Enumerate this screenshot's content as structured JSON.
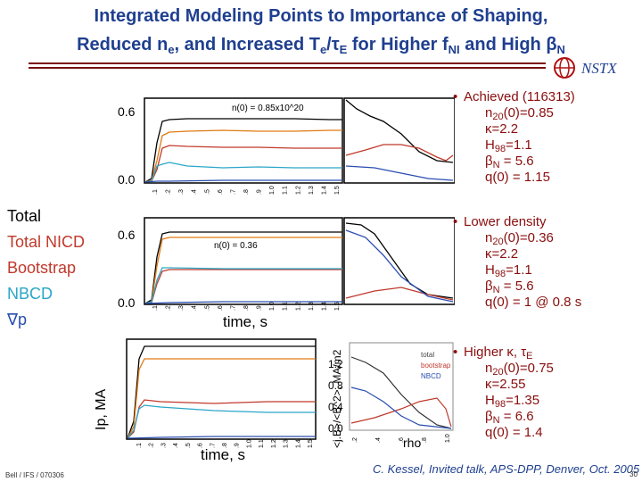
{
  "title": {
    "line1": "Integrated Modeling Points to Importance of Shaping,",
    "line2_a": "Reduced n",
    "line2_sub1": "e",
    "line2_b": ", and Increased T",
    "line2_sub2": "e",
    "line2_c": "/τ",
    "line2_sub3": "E",
    "line2_d": " for Higher f",
    "line2_sub4": "NI",
    "line2_e": " and High β",
    "line2_sub5": "N"
  },
  "logo_text": "NSTX",
  "legend": [
    {
      "label": "Total",
      "color": "#000000"
    },
    {
      "label": "Total NICD",
      "color": "#c0392b"
    },
    {
      "label": "Bootstrap",
      "color": "#c0392b"
    },
    {
      "label": "NBCD",
      "color": "#2aa6c8"
    },
    {
      "label": "∇p",
      "color": "#2a4db0"
    }
  ],
  "panel1": {
    "annot": "n(0) = 0.85x10^20",
    "y_top": "0.6",
    "y_bot": "0.0"
  },
  "panel2": {
    "annot": "n(0) = 0.36",
    "y_top": "0.6",
    "y_bot": "0.0"
  },
  "panel3": {
    "y_ticks": [
      "1.2",
      "0.8",
      "0.4",
      "0.0"
    ]
  },
  "panel3_legend": [
    "total",
    "bootstrap",
    "NBCD"
  ],
  "x_ticks": [
    ".1",
    ".2",
    ".3",
    ".4",
    ".5",
    ".6",
    ".7",
    ".8",
    ".9",
    "1.0",
    "1.1",
    "1.2",
    "1.3",
    "1.4",
    "1.5"
  ],
  "rho_ticks": [
    ".2",
    ".4",
    ".6",
    ".8",
    "1.0"
  ],
  "labels": {
    "time_s": "time, s",
    "ip": "Ip, MA",
    "jb": "<j.B>/<B^2>, MA/m2",
    "rho": "rho"
  },
  "cases": [
    {
      "head": "Achieved (116313)",
      "lines": [
        {
          "pre": "n",
          "sub": "20",
          "post": "(0)=0.85"
        },
        {
          "pre": "κ=2.2",
          "sub": "",
          "post": ""
        },
        {
          "pre": "H",
          "sub": "98",
          "post": "=1.1"
        },
        {
          "pre": "β",
          "sub": "N",
          "post": " = 5.6"
        },
        {
          "pre": "q(0) = 1.15",
          "sub": "",
          "post": ""
        }
      ]
    },
    {
      "head": "Lower density",
      "lines": [
        {
          "pre": "n",
          "sub": "20",
          "post": "(0)=0.36"
        },
        {
          "pre": "κ=2.2",
          "sub": "",
          "post": ""
        },
        {
          "pre": "H",
          "sub": "98",
          "post": "=1.1"
        },
        {
          "pre": "β",
          "sub": "N",
          "post": " = 5.6"
        },
        {
          "pre": "q(0) = 1 @ 0.8 s",
          "sub": "",
          "post": ""
        }
      ]
    },
    {
      "head": "Higher κ, τ",
      "head_sub": "E",
      "lines": [
        {
          "pre": "n",
          "sub": "20",
          "post": "(0)=0.75"
        },
        {
          "pre": "κ=2.55",
          "sub": "",
          "post": ""
        },
        {
          "pre": "H",
          "sub": "98",
          "post": "=1.35"
        },
        {
          "pre": "β",
          "sub": "N",
          "post": " = 6.6"
        },
        {
          "pre": "q(0) = 1.4",
          "sub": "",
          "post": ""
        }
      ]
    }
  ],
  "footer": {
    "left": "Bell / IFS / 070306",
    "right": "C. Kessel,  Invited talk, APS-DPP, Denver, Oct. 2005",
    "page": "30"
  }
}
